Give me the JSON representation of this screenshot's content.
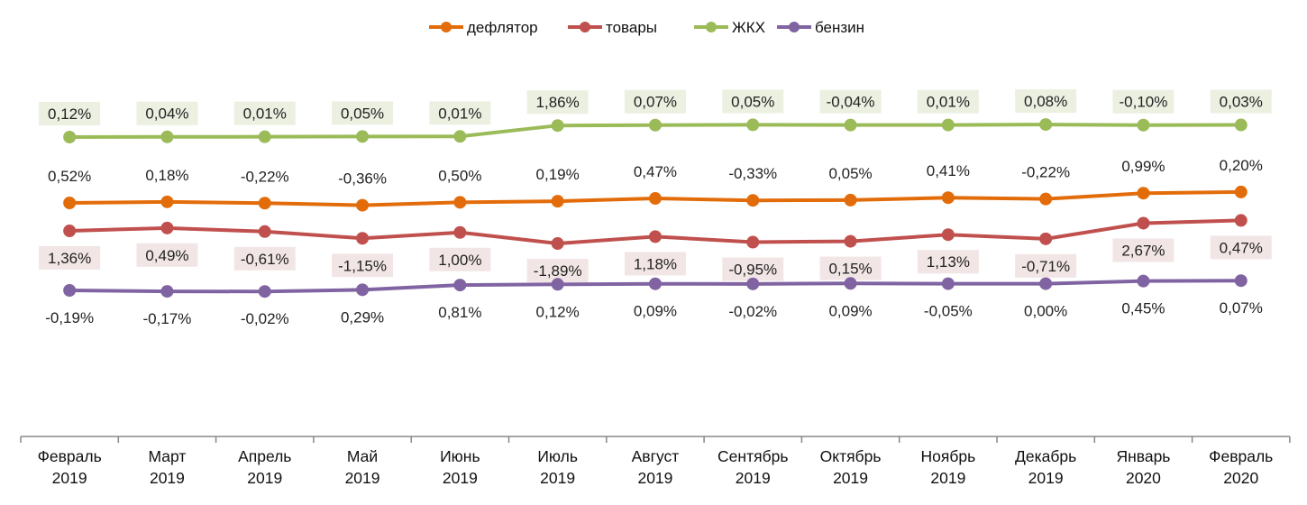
{
  "chart_data": {
    "type": "line",
    "title": "",
    "xlabel": "",
    "ylabel": "",
    "grid": false,
    "legend_position": "top",
    "categories": [
      [
        "Февраль",
        "2019"
      ],
      [
        "Март",
        "2019"
      ],
      [
        "Апрель",
        "2019"
      ],
      [
        "Май",
        "2019"
      ],
      [
        "Июнь",
        "2019"
      ],
      [
        "Июль",
        "2019"
      ],
      [
        "Август",
        "2019"
      ],
      [
        "Сентябрь",
        "2019"
      ],
      [
        "Октябрь",
        "2019"
      ],
      [
        "Ноябрь",
        "2019"
      ],
      [
        "Декабрь",
        "2019"
      ],
      [
        "Январь",
        "2020"
      ],
      [
        "Февраль",
        "2020"
      ]
    ],
    "series": [
      {
        "name": "дефлятор",
        "color": "#e36c0a",
        "values": [
          0.52,
          0.18,
          -0.22,
          -0.36,
          0.5,
          0.19,
          0.47,
          -0.33,
          0.05,
          0.41,
          -0.22,
          0.99,
          0.2
        ],
        "label_position": "above",
        "label_bg": null
      },
      {
        "name": "товары",
        "color": "#c0504d",
        "values": [
          1.36,
          0.49,
          -0.61,
          -1.15,
          1.0,
          -1.89,
          1.18,
          -0.95,
          0.15,
          1.13,
          -0.71,
          2.67,
          0.47
        ],
        "label_position": "below",
        "label_bg": "#f2e5e5"
      },
      {
        "name": "ЖКХ",
        "color": "#9bbb59",
        "values": [
          0.12,
          0.04,
          0.01,
          0.05,
          0.01,
          1.86,
          0.07,
          0.05,
          -0.04,
          0.01,
          0.08,
          -0.1,
          0.03
        ],
        "label_position": "above",
        "label_bg": "#ebf0e1"
      },
      {
        "name": "бензин",
        "color": "#8064a2",
        "values": [
          -0.19,
          -0.17,
          -0.02,
          0.29,
          0.81,
          0.12,
          0.09,
          -0.02,
          0.09,
          -0.05,
          0.0,
          0.45,
          0.07
        ],
        "label_position": "below",
        "label_bg": null
      }
    ]
  }
}
